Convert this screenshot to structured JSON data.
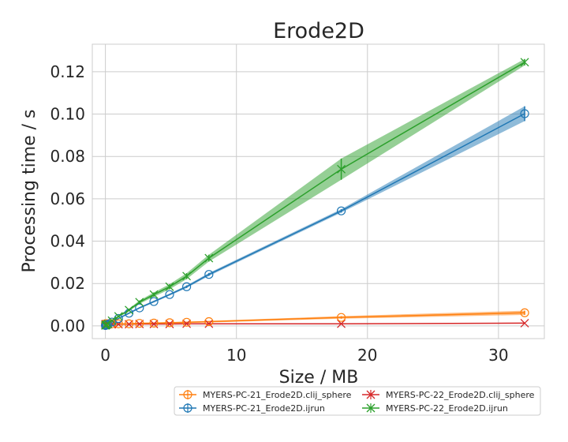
{
  "chart_data": {
    "type": "line",
    "title": "Erode2D",
    "xlabel": "Size / MB",
    "ylabel": "Processing time / s",
    "xlim": [
      -1,
      33.5
    ],
    "ylim": [
      -0.006,
      0.133
    ],
    "xticks": [
      0,
      10,
      20,
      30
    ],
    "yticks": [
      0.0,
      0.02,
      0.04,
      0.06,
      0.08,
      0.1,
      0.12
    ],
    "ytick_labels": [
      "0.00",
      "0.02",
      "0.04",
      "0.06",
      "0.08",
      "0.10",
      "0.12"
    ],
    "grid": true,
    "legend_position": "bottom-right",
    "series": [
      {
        "name": "MYERS-PC-21_Erode2D.clij_sphere",
        "color": "#ff7f0e",
        "marker": "circle",
        "x": [
          0,
          0.05,
          0.1,
          0.2,
          0.5,
          1,
          1.8,
          2.6,
          3.7,
          4.9,
          6.2,
          7.9,
          18,
          32
        ],
        "y": [
          0.001,
          0.001,
          0.001,
          0.001,
          0.001,
          0.001,
          0.001,
          0.0012,
          0.0013,
          0.0015,
          0.0017,
          0.002,
          0.004,
          0.0062
        ],
        "band": [
          0.0002,
          0.0002,
          0.0002,
          0.0002,
          0.0002,
          0.0002,
          0.0002,
          0.0003,
          0.0003,
          0.0003,
          0.0003,
          0.0004,
          0.0006,
          0.001
        ]
      },
      {
        "name": "MYERS-PC-21_Erode2D.ijrun",
        "color": "#1f77b4",
        "marker": "circle",
        "x": [
          0,
          0.05,
          0.1,
          0.2,
          0.5,
          1,
          1.8,
          2.6,
          3.7,
          4.9,
          6.2,
          7.9,
          18,
          32
        ],
        "y": [
          0.0002,
          0.0003,
          0.0005,
          0.0008,
          0.0018,
          0.0035,
          0.006,
          0.0085,
          0.0115,
          0.0148,
          0.0185,
          0.0243,
          0.0543,
          0.1002
        ],
        "band": [
          0.0001,
          0.0001,
          0.0002,
          0.0002,
          0.0003,
          0.0003,
          0.0004,
          0.0004,
          0.0005,
          0.0005,
          0.0006,
          0.0007,
          0.0008,
          0.0035
        ]
      },
      {
        "name": "MYERS-PC-22_Erode2D.clij_sphere",
        "color": "#d62728",
        "marker": "x",
        "x": [
          0,
          0.05,
          0.1,
          0.2,
          0.5,
          1,
          1.8,
          2.6,
          3.7,
          4.9,
          6.2,
          7.9,
          18,
          32
        ],
        "y": [
          0.0008,
          0.0008,
          0.0008,
          0.0008,
          0.0008,
          0.0008,
          0.0008,
          0.0009,
          0.0009,
          0.0009,
          0.001,
          0.001,
          0.001,
          0.0013
        ],
        "band": [
          0.0001,
          0.0001,
          0.0001,
          0.0001,
          0.0001,
          0.0001,
          0.0001,
          0.0001,
          0.0001,
          0.0001,
          0.0001,
          0.0001,
          0.0001,
          0.0002
        ]
      },
      {
        "name": "MYERS-PC-22_Erode2D.ijrun",
        "color": "#2ca02c",
        "marker": "x",
        "x": [
          0,
          0.05,
          0.1,
          0.2,
          0.5,
          1,
          1.8,
          2.6,
          3.7,
          4.9,
          6.2,
          7.9,
          18,
          32
        ],
        "y": [
          0.0002,
          0.0004,
          0.0006,
          0.001,
          0.0025,
          0.0045,
          0.0075,
          0.0112,
          0.0148,
          0.0185,
          0.0235,
          0.032,
          0.074,
          0.1245
        ],
        "band": [
          0.0001,
          0.0001,
          0.0002,
          0.0002,
          0.0004,
          0.0005,
          0.0006,
          0.0008,
          0.001,
          0.0012,
          0.0014,
          0.0016,
          0.005,
          0.0015
        ]
      }
    ],
    "legend_order": [
      0,
      1,
      2,
      3
    ]
  }
}
